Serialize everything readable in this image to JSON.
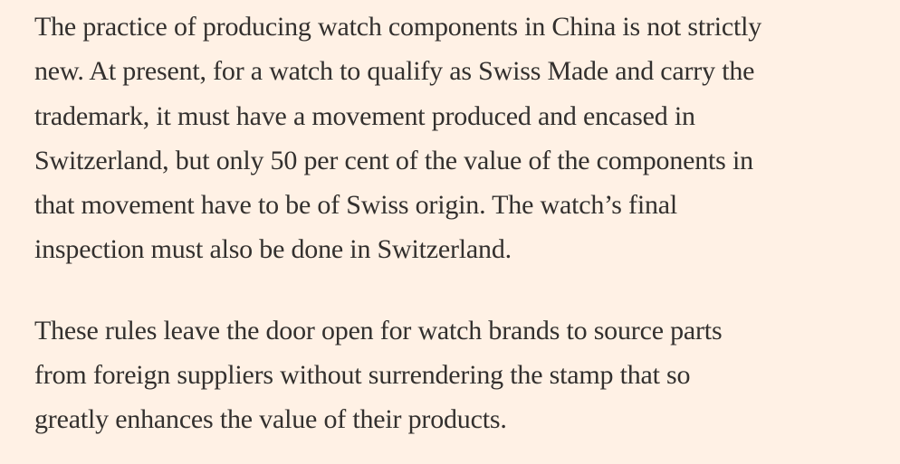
{
  "article": {
    "paragraphs": [
      {
        "lines": [
          "The practice of producing watch components in China is not strictly",
          "new. At present, for a watch to qualify as Swiss Made and carry the",
          "trademark, it must have a movement produced and encased in",
          "Switzerland, but only 50 per cent of the value of the components in",
          "that movement have to be of Swiss origin. The watch’s final",
          "inspection must also be done in Switzerland."
        ]
      },
      {
        "lines": [
          "These rules leave the door open for watch brands to source parts",
          "from foreign suppliers without surrendering the stamp that so",
          "greatly enhances the value of their products."
        ]
      }
    ]
  }
}
